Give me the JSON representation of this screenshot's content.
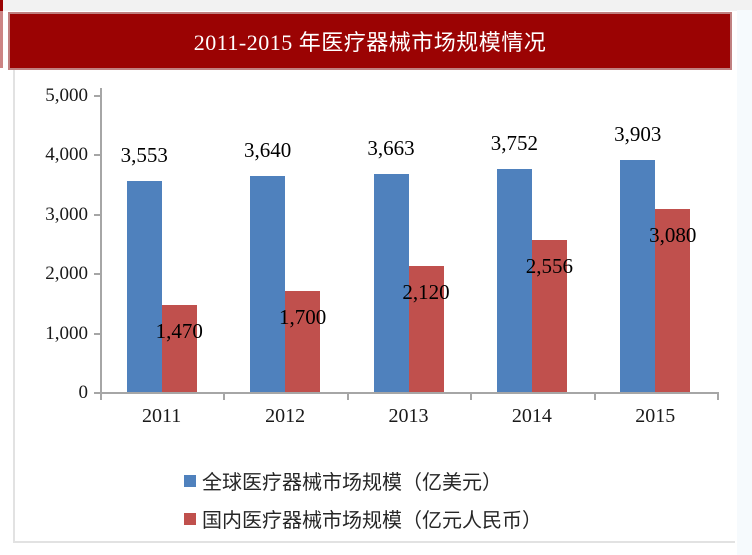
{
  "title": "2011-2015 年医疗器械市场规模情况",
  "colors": {
    "title_bg": "#9b0303",
    "series_global": "#4f81bd",
    "series_domestic": "#c0504d",
    "axis": "#a6a6a6"
  },
  "chart_data": {
    "type": "bar",
    "title": "2011-2015 年医疗器械市场规模情况",
    "categories": [
      "2011",
      "2012",
      "2013",
      "2014",
      "2015"
    ],
    "series": [
      {
        "name": "全球医疗器械市场规模（亿美元）",
        "color": "#4f81bd",
        "values": [
          3553,
          3640,
          3663,
          3752,
          3903
        ],
        "label_placement": "above"
      },
      {
        "name": "国内医疗器械市场规模（亿元人民币）",
        "color": "#c0504d",
        "values": [
          1470,
          1700,
          2120,
          2556,
          3080
        ],
        "label_placement": "inside-top"
      }
    ],
    "xlabel": "",
    "ylabel": "",
    "ylim": [
      0,
      5000
    ],
    "y_ticks": [
      0,
      1000,
      2000,
      3000,
      4000,
      5000
    ],
    "grid": false,
    "legend_position": "bottom"
  }
}
